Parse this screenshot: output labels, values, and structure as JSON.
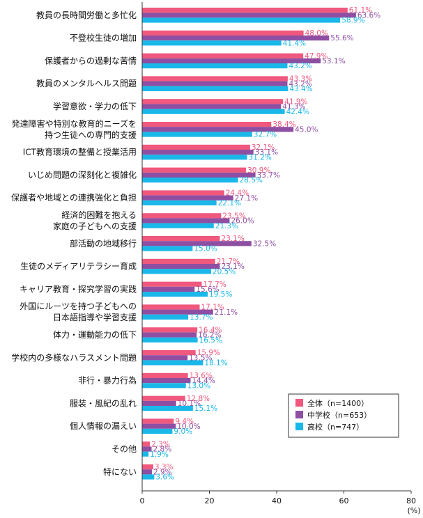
{
  "chart_data": {
    "type": "bar",
    "orientation": "horizontal",
    "unit_label": "(%)",
    "xlim": [
      0,
      80
    ],
    "xticks": [
      "0",
      "20",
      "40",
      "60",
      "80"
    ],
    "grid": false,
    "legend_position": "bottom-right",
    "categories": [
      [
        "教員の長時間労働と多忙化"
      ],
      [
        "不登校生徒の増加"
      ],
      [
        "保護者からの過剰な苦情"
      ],
      [
        "教員のメンタルヘルス問題"
      ],
      [
        "学習意欲・学力の低下"
      ],
      [
        "発達障害や特別な教育的ニーズを",
        "持つ生徒への専門的支援"
      ],
      [
        "ICT教育環境の整備と授業活用"
      ],
      [
        "いじめ問題の深刻化と複雑化"
      ],
      [
        "保護者や地域との連携強化と負担"
      ],
      [
        "経済的困難を抱える",
        "家庭の子どもへの支援"
      ],
      [
        "部活動の地域移行"
      ],
      [
        "生徒のメディアリテラシー育成"
      ],
      [
        "キャリア教育・探究学習の実践"
      ],
      [
        "外国にルーツを持つ子どもへの",
        "日本語指導や学習支援"
      ],
      [
        "体力・運動能力の低下"
      ],
      [
        "学校内の多様なハラスメント問題"
      ],
      [
        "非行・暴力行為"
      ],
      [
        "服装・風紀の乱れ"
      ],
      [
        "個人情報の漏えい"
      ],
      [
        "その他"
      ],
      [
        "特にない"
      ]
    ],
    "series": [
      {
        "name": "全体（n=1400）",
        "color": "#f0587e",
        "values": [
          61.1,
          48.0,
          47.9,
          43.3,
          41.9,
          38.4,
          32.1,
          30.9,
          24.4,
          23.5,
          23.1,
          21.7,
          17.7,
          17.1,
          16.4,
          15.9,
          13.6,
          12.8,
          9.4,
          2.3,
          3.3
        ],
        "labels": [
          "61.1%",
          "48.0%",
          "47.9%",
          "43.3%",
          "41.9%",
          "38.4%",
          "32.1%",
          "30.9%",
          "24.4%",
          "23.5%",
          "23.1%",
          "21.7%",
          "17.7%",
          "17.1%",
          "16.4%",
          "15.9%",
          "13.6%",
          "12.8%",
          "9.4%",
          "2.3%",
          "3.3%"
        ]
      },
      {
        "name": "中学校（n=653）",
        "color": "#8e4fa3",
        "values": [
          63.6,
          55.6,
          53.1,
          43.2,
          41.3,
          45.0,
          33.1,
          33.7,
          27.1,
          26.0,
          32.5,
          23.1,
          15.6,
          21.1,
          16.2,
          13.5,
          14.4,
          10.1,
          10.0,
          2.8,
          2.9
        ],
        "labels": [
          "63.6%",
          "55.6%",
          "53.1%",
          "43.2%",
          "41.3%",
          "45.0%",
          "33.1%",
          "33.7%",
          "27.1%",
          "26.0%",
          "32.5%",
          "23.1%",
          "15.6%",
          "21.1%",
          "16.2%",
          "13.5%",
          "14.4%",
          "10.1%",
          "10.0%",
          "2.8%",
          "2.9%"
        ]
      },
      {
        "name": "高校（n=747）",
        "color": "#19b8e8",
        "values": [
          58.9,
          41.4,
          43.2,
          43.4,
          42.4,
          32.7,
          31.2,
          28.5,
          22.1,
          21.3,
          15.0,
          20.5,
          19.5,
          13.7,
          16.5,
          18.1,
          13.0,
          15.1,
          9.0,
          1.9,
          3.6
        ],
        "labels": [
          "58.9%",
          "41.4%",
          "43.2%",
          "43.4%",
          "42.4%",
          "32.7%",
          "31.2%",
          "28.5%",
          "22.1%",
          "21.3%",
          "15.0%",
          "20.5%",
          "19.5%",
          "13.7%",
          "16.5%",
          "18.1%",
          "13.0%",
          "15.1%",
          "9.0%",
          "1.9%",
          "3.6%"
        ]
      }
    ]
  }
}
